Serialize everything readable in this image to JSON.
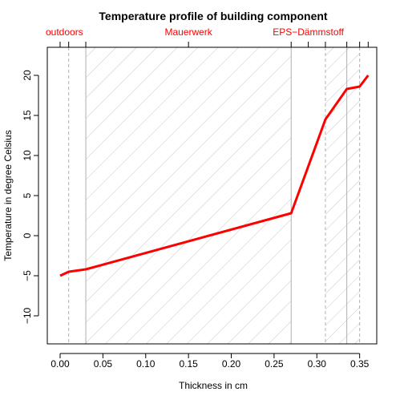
{
  "chart_data": {
    "type": "line",
    "title": "Temperature profile of building component",
    "xlabel": "Thickness in cm",
    "ylabel": "Temperature in degree Celsius",
    "xlim": [
      -0.015,
      0.37
    ],
    "ylim": [
      -13.5,
      23.5
    ],
    "x_ticks": [
      0.0,
      0.05,
      0.1,
      0.15,
      0.2,
      0.25,
      0.3,
      0.35
    ],
    "x_tick_labels": [
      "0.00",
      "0.05",
      "0.10",
      "0.15",
      "0.20",
      "0.25",
      "0.30",
      "0.35"
    ],
    "y_ticks": [
      -10,
      -5,
      0,
      5,
      10,
      15,
      20
    ],
    "y_tick_labels": [
      "−10",
      "−5",
      "0",
      "5",
      "10",
      "15",
      "20"
    ],
    "top_axis_ticks": [
      0.0,
      0.01,
      0.03,
      0.15,
      0.27,
      0.29,
      0.31,
      0.335,
      0.35,
      0.36
    ],
    "top_labels": [
      {
        "text": "outdoors",
        "x": 0.005
      },
      {
        "text": "Mauerwerk",
        "x": 0.15
      },
      {
        "text": "EPS−Dämmstoff",
        "x": 0.29
      }
    ],
    "layer_boundaries": [
      0.01,
      0.03,
      0.27,
      0.31,
      0.335,
      0.35
    ],
    "dashed_boundaries": [
      0.01,
      0.31,
      0.35
    ],
    "hatched_regions": [
      [
        0.03,
        0.27
      ],
      [
        0.31,
        0.335
      ],
      [
        0.335,
        0.35
      ]
    ],
    "series": [
      {
        "x": [
          0.0,
          0.01,
          0.03,
          0.27,
          0.31,
          0.335,
          0.35,
          0.36
        ],
        "values": [
          -5.0,
          -4.5,
          -4.2,
          2.8,
          14.5,
          18.3,
          18.6,
          20.0
        ],
        "color": "#ff0000"
      }
    ],
    "grid": false,
    "colors": {
      "line": "#ff0000",
      "top_labels": "#ff0000",
      "hatch": "#c8c8c8",
      "boundary": "#b0b0b0",
      "axis": "#000000"
    }
  }
}
